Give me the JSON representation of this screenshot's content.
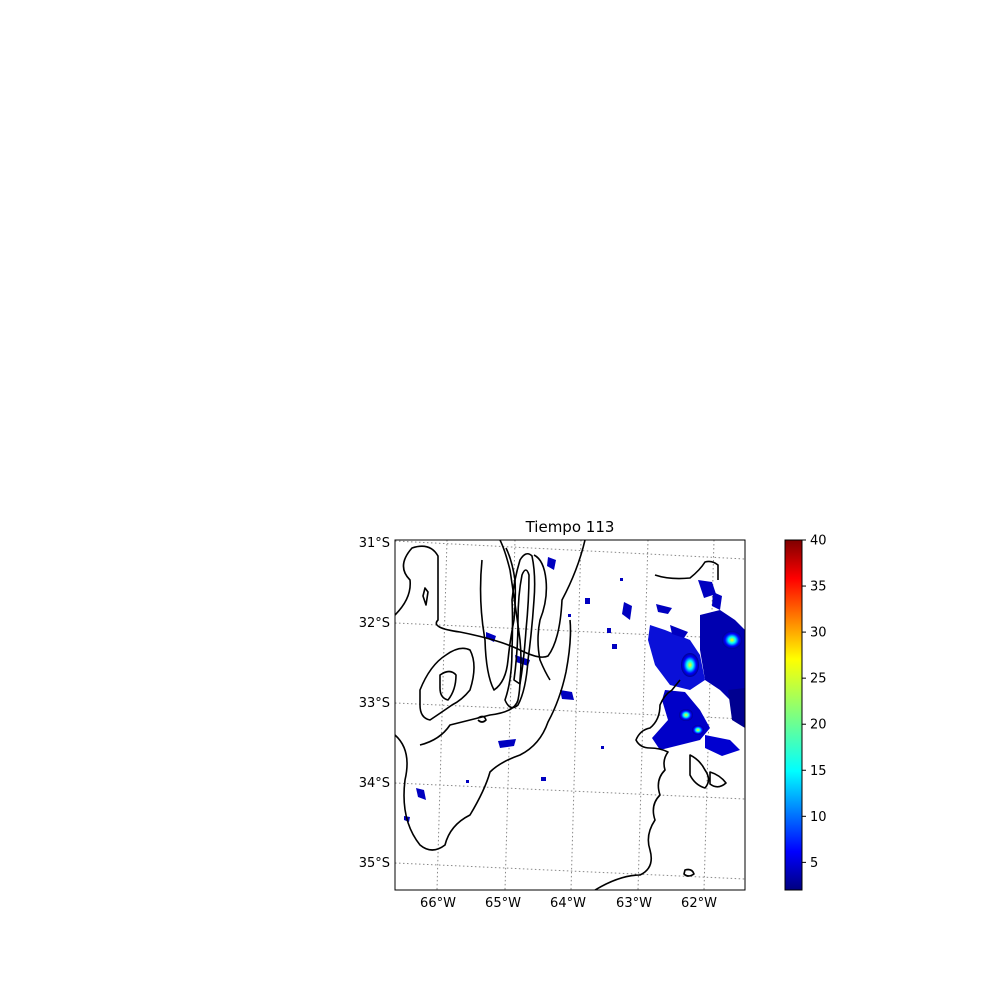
{
  "title": "Tiempo 113",
  "map": {
    "lat_labels": [
      "31°S",
      "32°S",
      "33°S",
      "34°S",
      "35°S"
    ],
    "lon_labels": [
      "66°W",
      "65°W",
      "64°W",
      "63°W",
      "62°W"
    ],
    "gridlines": "dotted",
    "contour_color": "#000000"
  },
  "colorbar": {
    "colormap": "jet",
    "ticks": [
      "5",
      "10",
      "15",
      "20",
      "25",
      "30",
      "35",
      "40"
    ],
    "min": 2,
    "max": 40
  }
}
